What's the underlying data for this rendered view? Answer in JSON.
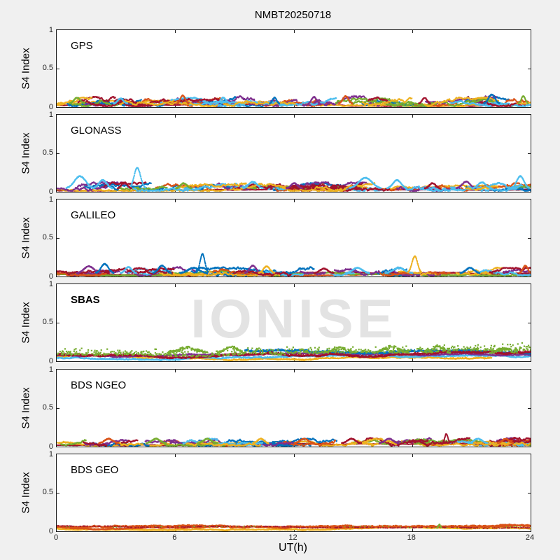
{
  "figure": {
    "title": "NMBT20250718",
    "background": "#f0f0f0",
    "watermark": "IONISE"
  },
  "palette": {
    "blue": "#0072BD",
    "orange": "#D95319",
    "yellow": "#EDB120",
    "purple": "#7E2F8E",
    "green": "#77AC30",
    "cyan": "#4DBEEE",
    "red": "#A2142F"
  },
  "chart_data": {
    "type": "scatter",
    "title": "NMBT20250718",
    "xlabel": "UT(h)",
    "ylabel": "S4 Index",
    "watermark": "IONISE",
    "axes": {
      "xlim": [
        0,
        24
      ],
      "ylim": [
        0,
        1
      ],
      "xticks": [
        0,
        6,
        12,
        18,
        24
      ],
      "xtick_labels": [
        "0",
        "6",
        "12",
        "18",
        "24"
      ],
      "yticks": [
        1,
        0.5,
        0
      ],
      "ytick_labels": [
        "1",
        "0.5",
        "0"
      ],
      "axis_color": "#1c1c1c",
      "grid": false
    },
    "panels": [
      {
        "label": "GPS",
        "bold": false,
        "seed": 101,
        "series": [
          {
            "c": "red",
            "base": 0.028,
            "walk": 0.002,
            "max": 0.045,
            "range": [
              0,
              24
            ],
            "jit": 0.008,
            "dot": 1.6
          },
          {
            "c": "yellow",
            "base": 0.045,
            "walk": 0.008,
            "max": 0.09,
            "range": [
              0,
              24
            ],
            "jit": 0.012
          },
          {
            "c": "blue",
            "base": 0.065,
            "walk": 0.016,
            "max": 0.14,
            "arcs": 9
          },
          {
            "c": "orange",
            "base": 0.06,
            "walk": 0.016,
            "max": 0.14,
            "arcs": 8
          },
          {
            "c": "purple",
            "base": 0.07,
            "walk": 0.016,
            "max": 0.15,
            "arcs": 8
          },
          {
            "c": "green",
            "base": 0.055,
            "walk": 0.014,
            "max": 0.12,
            "arcs": 6
          },
          {
            "c": "cyan",
            "base": 0.06,
            "walk": 0.014,
            "max": 0.13,
            "arcs": 7
          },
          {
            "c": "red",
            "base": 0.07,
            "walk": 0.016,
            "max": 0.14,
            "arcs": 7
          },
          {
            "c": "yellow",
            "base": 0.06,
            "walk": 0.014,
            "max": 0.13,
            "arcs": 6
          }
        ],
        "spikes": [
          {
            "t": 1.0,
            "p": 0.08,
            "w": 0.4,
            "c": "green"
          },
          {
            "t": 3.2,
            "p": 0.07,
            "w": 0.35,
            "c": "cyan"
          },
          {
            "t": 6.35,
            "p": 0.11,
            "w": 0.3,
            "c": "orange"
          },
          {
            "t": 8.4,
            "p": 0.08,
            "w": 0.35,
            "c": "cyan"
          },
          {
            "t": 11.0,
            "p": 0.08,
            "w": 0.25,
            "c": "blue"
          },
          {
            "t": 13.0,
            "p": 0.09,
            "w": 0.3,
            "c": "purple"
          },
          {
            "t": 14.6,
            "p": 0.1,
            "w": 0.35,
            "c": "orange"
          },
          {
            "t": 18.6,
            "p": 0.08,
            "w": 0.3,
            "c": "red"
          },
          {
            "t": 22.0,
            "p": 0.12,
            "w": 0.4,
            "c": "blue"
          },
          {
            "t": 23.6,
            "p": 0.1,
            "w": 0.25,
            "c": "green"
          }
        ]
      },
      {
        "label": "GLONASS",
        "bold": false,
        "seed": 202,
        "series": [
          {
            "c": "red",
            "base": 0.028,
            "walk": 0.002,
            "max": 0.045,
            "range": [
              0,
              24
            ],
            "jit": 0.008,
            "dot": 1.6
          },
          {
            "c": "yellow",
            "base": 0.045,
            "walk": 0.008,
            "max": 0.09,
            "range": [
              0,
              24
            ],
            "jit": 0.012
          },
          {
            "c": "blue",
            "base": 0.06,
            "walk": 0.014,
            "max": 0.12,
            "arcs": 8
          },
          {
            "c": "orange",
            "base": 0.055,
            "walk": 0.014,
            "max": 0.12,
            "arcs": 7
          },
          {
            "c": "purple",
            "base": 0.065,
            "walk": 0.015,
            "max": 0.13,
            "arcs": 7
          },
          {
            "c": "green",
            "base": 0.05,
            "walk": 0.012,
            "max": 0.11,
            "arcs": 6
          },
          {
            "c": "cyan",
            "base": 0.06,
            "walk": 0.014,
            "max": 0.13,
            "arcs": 8
          },
          {
            "c": "red",
            "base": 0.065,
            "walk": 0.015,
            "max": 0.13,
            "arcs": 7
          },
          {
            "c": "yellow",
            "base": 0.055,
            "walk": 0.013,
            "max": 0.12,
            "arcs": 6
          }
        ],
        "spikes": [
          {
            "t": 1.15,
            "p": 0.16,
            "w": 0.7,
            "c": "cyan"
          },
          {
            "t": 2.3,
            "p": 0.11,
            "w": 0.5,
            "c": "cyan"
          },
          {
            "t": 4.05,
            "p": 0.27,
            "w": 0.4,
            "c": "cyan"
          },
          {
            "t": 3.4,
            "p": 0.08,
            "w": 0.35,
            "c": "red"
          },
          {
            "t": 6.4,
            "p": 0.07,
            "w": 0.4,
            "c": "green"
          },
          {
            "t": 9.9,
            "p": 0.09,
            "w": 0.5,
            "c": "cyan"
          },
          {
            "t": 12.0,
            "p": 0.07,
            "w": 0.4,
            "c": "purple"
          },
          {
            "t": 15.6,
            "p": 0.14,
            "w": 0.8,
            "c": "cyan"
          },
          {
            "t": 17.2,
            "p": 0.11,
            "w": 0.5,
            "c": "cyan"
          },
          {
            "t": 19.0,
            "p": 0.07,
            "w": 0.4,
            "c": "red"
          },
          {
            "t": 20.7,
            "p": 0.09,
            "w": 0.5,
            "c": "purple"
          },
          {
            "t": 21.5,
            "p": 0.08,
            "w": 0.5,
            "c": "cyan"
          },
          {
            "t": 23.45,
            "p": 0.16,
            "w": 0.45,
            "c": "cyan"
          }
        ]
      },
      {
        "label": "GALILEO",
        "bold": false,
        "seed": 303,
        "series": [
          {
            "c": "orange",
            "base": 0.03,
            "walk": 0.003,
            "max": 0.05,
            "range": [
              0,
              24
            ],
            "jit": 0.008,
            "dot": 1.6
          },
          {
            "c": "red",
            "base": 0.04,
            "walk": 0.004,
            "max": 0.06,
            "range": [
              0,
              24
            ],
            "jit": 0.008,
            "dot": 1.6
          },
          {
            "c": "green",
            "base": 0.05,
            "walk": 0.006,
            "max": 0.08,
            "range": [
              0,
              24
            ],
            "jit": 0.012
          },
          {
            "c": "blue",
            "base": 0.06,
            "walk": 0.015,
            "max": 0.13,
            "arcs": 7
          },
          {
            "c": "purple",
            "base": 0.065,
            "walk": 0.015,
            "max": 0.13,
            "arcs": 6
          },
          {
            "c": "yellow",
            "base": 0.06,
            "walk": 0.013,
            "max": 0.12,
            "arcs": 6
          },
          {
            "c": "cyan",
            "base": 0.055,
            "walk": 0.012,
            "max": 0.11,
            "arcs": 5
          },
          {
            "c": "orange",
            "base": 0.055,
            "walk": 0.013,
            "max": 0.12,
            "arcs": 5
          },
          {
            "c": "red",
            "base": 0.06,
            "walk": 0.014,
            "max": 0.12,
            "arcs": 5
          }
        ],
        "spikes": [
          {
            "t": 1.6,
            "p": 0.09,
            "w": 0.6,
            "c": "purple"
          },
          {
            "t": 2.4,
            "p": 0.12,
            "w": 0.45,
            "c": "blue"
          },
          {
            "t": 3.6,
            "p": 0.08,
            "w": 0.4,
            "c": "cyan"
          },
          {
            "t": 5.3,
            "p": 0.1,
            "w": 0.45,
            "c": "blue"
          },
          {
            "t": 6.9,
            "p": 0.07,
            "w": 0.7,
            "c": "blue"
          },
          {
            "t": 7.35,
            "p": 0.25,
            "w": 0.3,
            "c": "blue"
          },
          {
            "t": 9.9,
            "p": 0.1,
            "w": 0.4,
            "c": "purple"
          },
          {
            "t": 10.6,
            "p": 0.09,
            "w": 0.4,
            "c": "yellow"
          },
          {
            "t": 13.5,
            "p": 0.06,
            "w": 0.5,
            "c": "red"
          },
          {
            "t": 15.2,
            "p": 0.07,
            "w": 0.6,
            "c": "cyan"
          },
          {
            "t": 17.3,
            "p": 0.07,
            "w": 0.7,
            "c": "cyan"
          },
          {
            "t": 18.1,
            "p": 0.22,
            "w": 0.35,
            "c": "yellow"
          },
          {
            "t": 20.9,
            "p": 0.07,
            "w": 0.5,
            "c": "blue"
          },
          {
            "t": 23.7,
            "p": 0.1,
            "w": 0.3,
            "c": "orange"
          }
        ]
      },
      {
        "label": "SBAS",
        "bold": true,
        "seed": 404,
        "series": [
          {
            "c": "yellow",
            "base": 0.055,
            "walk": 0.004,
            "max": 0.09,
            "range": [
              0,
              22
            ],
            "jit": 0.02
          },
          {
            "c": "cyan",
            "base": 0.045,
            "walk": 0.004,
            "max": 0.08,
            "range": [
              0,
              24
            ],
            "jit": 0.02
          },
          {
            "c": "purple",
            "base": 0.075,
            "walk": 0.004,
            "max": 0.11,
            "range": [
              0,
              24
            ],
            "jit": 0.02
          },
          {
            "c": "blue",
            "base": 0.12,
            "walk": 0.004,
            "max": 0.15,
            "range": [
              9.5,
              24
            ],
            "jit": 0.025,
            "dot": 2
          },
          {
            "c": "red",
            "base": 0.115,
            "walk": 0.005,
            "max": 0.14,
            "range": [
              0,
              24
            ],
            "jit": 0.025,
            "dot": 2
          },
          {
            "c": "green",
            "base": 0.13,
            "walk": 0.004,
            "max": 0.17,
            "range": [
              0,
              24
            ],
            "jit": 0.1,
            "sparse": 0.32,
            "dot": 2.2
          }
        ],
        "spikes": [
          {
            "t": 6.6,
            "p": 0.07,
            "w": 1.0,
            "c": "green",
            "b": 0.12,
            "sp": 0.4,
            "n": 0.03,
            "d": 2.2
          },
          {
            "t": 8.8,
            "p": 0.08,
            "w": 0.7,
            "c": "green",
            "b": 0.12,
            "sp": 0.4,
            "n": 0.03,
            "d": 2.2
          },
          {
            "t": 14.3,
            "p": 0.06,
            "w": 0.8,
            "c": "green",
            "b": 0.12,
            "sp": 0.4,
            "n": 0.03,
            "d": 2.2
          },
          {
            "t": 16.9,
            "p": 0.08,
            "w": 0.9,
            "c": "green",
            "b": 0.12,
            "sp": 0.4,
            "n": 0.03,
            "d": 2.2
          },
          {
            "t": 19.3,
            "p": 0.09,
            "w": 0.6,
            "c": "green",
            "b": 0.12,
            "sp": 0.4,
            "n": 0.03,
            "d": 2.2
          },
          {
            "t": 22.6,
            "p": 0.06,
            "w": 0.7,
            "c": "green",
            "b": 0.12,
            "sp": 0.4,
            "n": 0.03,
            "d": 2.2
          }
        ]
      },
      {
        "label": "BDS NGEO",
        "bold": false,
        "seed": 505,
        "series": [
          {
            "c": "red",
            "base": 0.028,
            "walk": 0.002,
            "max": 0.045,
            "range": [
              0,
              24
            ],
            "jit": 0.008,
            "dot": 1.6
          },
          {
            "c": "yellow",
            "base": 0.045,
            "walk": 0.008,
            "max": 0.085,
            "range": [
              0,
              24
            ],
            "jit": 0.012
          },
          {
            "c": "blue",
            "base": 0.055,
            "walk": 0.013,
            "max": 0.11,
            "arcs": 7
          },
          {
            "c": "orange",
            "base": 0.055,
            "walk": 0.013,
            "max": 0.11,
            "arcs": 7
          },
          {
            "c": "purple",
            "base": 0.06,
            "walk": 0.014,
            "max": 0.12,
            "arcs": 7
          },
          {
            "c": "green",
            "base": 0.05,
            "walk": 0.012,
            "max": 0.1,
            "arcs": 6
          },
          {
            "c": "cyan",
            "base": 0.055,
            "walk": 0.012,
            "max": 0.11,
            "arcs": 6
          },
          {
            "c": "red",
            "base": 0.06,
            "walk": 0.014,
            "max": 0.12,
            "arcs": 7
          },
          {
            "c": "yellow",
            "base": 0.055,
            "walk": 0.012,
            "max": 0.11,
            "arcs": 6
          }
        ],
        "spikes": [
          {
            "t": 2.6,
            "p": 0.06,
            "w": 0.5,
            "c": "orange"
          },
          {
            "t": 5.0,
            "p": 0.06,
            "w": 0.5,
            "c": "green"
          },
          {
            "t": 7.6,
            "p": 0.06,
            "w": 0.5,
            "c": "green"
          },
          {
            "t": 10.3,
            "p": 0.06,
            "w": 0.4,
            "c": "yellow"
          },
          {
            "t": 12.5,
            "p": 0.06,
            "w": 0.5,
            "c": "orange"
          },
          {
            "t": 14.9,
            "p": 0.06,
            "w": 0.5,
            "c": "red"
          },
          {
            "t": 16.8,
            "p": 0.06,
            "w": 0.5,
            "c": "purple"
          },
          {
            "t": 19.7,
            "p": 0.12,
            "w": 0.2,
            "c": "red"
          },
          {
            "t": 21.3,
            "p": 0.06,
            "w": 0.5,
            "c": "cyan"
          },
          {
            "t": 22.7,
            "p": 0.06,
            "w": 0.4,
            "c": "orange"
          }
        ]
      },
      {
        "label": "BDS GEO",
        "bold": false,
        "seed": 606,
        "series": [
          {
            "c": "yellow",
            "base": 0.042,
            "walk": 0.003,
            "max": 0.06,
            "range": [
              0,
              24
            ],
            "jit": 0.012,
            "dot": 2
          },
          {
            "c": "orange",
            "base": 0.058,
            "walk": 0.004,
            "max": 0.085,
            "range": [
              0,
              24
            ],
            "jit": 0.014,
            "dot": 2
          },
          {
            "c": "orange",
            "base": 0.068,
            "walk": 0.003,
            "max": 0.09,
            "range": [
              0,
              24
            ],
            "jit": 0.016,
            "dot": 2
          },
          {
            "c": "red",
            "base": 0.075,
            "walk": 0.002,
            "max": 0.088,
            "range": [
              0,
              24
            ],
            "jit": 0.008,
            "sparse": 0.2,
            "dot": 1.6
          },
          {
            "c": "green",
            "base": 0.08,
            "walk": 0.002,
            "max": 0.09,
            "range": [
              0,
              24
            ],
            "jit": 0.006,
            "sparse": 0.03,
            "dot": 1.6
          }
        ],
        "spikes": [
          {
            "t": 19.35,
            "p": 0.045,
            "w": 0.12,
            "c": "green"
          }
        ]
      }
    ]
  }
}
